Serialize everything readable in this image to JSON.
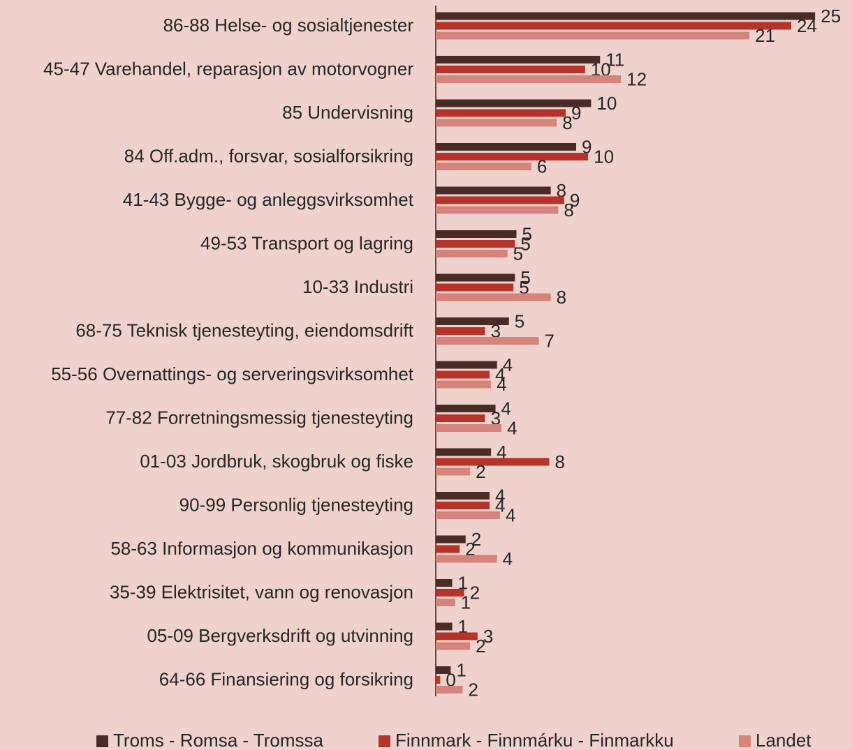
{
  "chart_data": {
    "type": "hbar",
    "categories": [
      "86-88 Helse- og sosialtjenester",
      "45-47 Varehandel, reparasjon av motorvogner",
      "85 Undervisning",
      "84 Off.adm., forsvar, sosialforsikring",
      "41-43 Bygge- og anleggsvirksomhet",
      "49-53 Transport og lagring",
      "10-33 Industri",
      "68-75 Teknisk tjenesteyting, eiendomsdrift",
      "55-56 Overnattings- og serveringsvirksomhet",
      "77-82 Forretningsmessig tjenesteyting",
      "01-03 Jordbruk, skogbruk og fiske",
      "90-99 Personlig tjenesteyting",
      "58-63 Informasjon og kommunikasjon",
      "35-39 Elektrisitet, vann og renovasjon",
      "05-09 Bergverksdrift og utvinning",
      "64-66 Finansiering og forsikring"
    ],
    "series": [
      {
        "name": "Troms - Romsa - Tromssa",
        "color": "#4a2c27",
        "values": [
          25.4,
          11.0,
          10.4,
          9.4,
          7.7,
          5.4,
          5.3,
          4.9,
          4.1,
          4.0,
          3.7,
          3.6,
          2.0,
          1.1,
          1.1,
          1.0
        ],
        "value_labels": [
          "25",
          "11",
          "10",
          "9",
          "8",
          "5",
          "5",
          "5",
          "4",
          "4",
          "4",
          "4",
          "2",
          "1",
          "1",
          "1"
        ]
      },
      {
        "name": "Finnmark - Finnmárku - Finmarkku",
        "color": "#b5332a",
        "values": [
          23.8,
          10.0,
          8.7,
          10.2,
          8.6,
          5.3,
          5.2,
          3.3,
          3.6,
          3.3,
          7.6,
          3.6,
          1.6,
          1.9,
          2.8,
          0.3
        ],
        "value_labels": [
          "24",
          "10",
          "9",
          "10",
          "9",
          "5",
          "5",
          "3",
          "4",
          "3",
          "8",
          "4",
          "2",
          "2",
          "3",
          "0"
        ]
      },
      {
        "name": "Landet",
        "color": "#d4847a",
        "values": [
          21.0,
          12.4,
          8.1,
          6.4,
          8.2,
          4.8,
          7.7,
          6.9,
          3.7,
          4.4,
          2.3,
          4.3,
          4.1,
          1.3,
          2.3,
          1.8
        ],
        "value_labels": [
          "21",
          "12",
          "8",
          "6",
          "8",
          "5",
          "8",
          "7",
          "4",
          "4",
          "2",
          "4",
          "4",
          "1",
          "2",
          "2"
        ]
      }
    ],
    "xlim": [
      0,
      26
    ],
    "legend": "bottom"
  }
}
